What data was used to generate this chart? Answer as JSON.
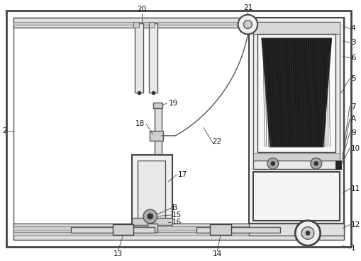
{
  "bg_color": "#ffffff",
  "line_color": "#555555",
  "fig_w": 5.1,
  "fig_h": 3.69,
  "dpi": 100
}
